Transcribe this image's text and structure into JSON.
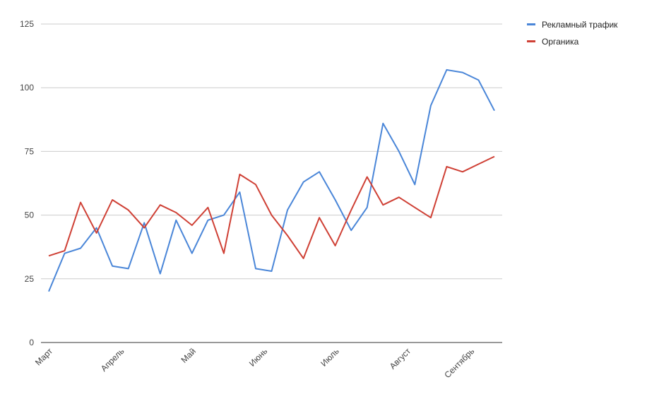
{
  "chart_data": {
    "type": "line",
    "ylim": [
      0,
      125
    ],
    "y_ticks": [
      0,
      25,
      50,
      75,
      100,
      125
    ],
    "grid": true,
    "legend_position": "top-right",
    "x_labels": [
      {
        "index": 0,
        "label": "Март"
      },
      {
        "index": 4.5,
        "label": "Апрель"
      },
      {
        "index": 9,
        "label": "Май"
      },
      {
        "index": 13.5,
        "label": "Июнь"
      },
      {
        "index": 18,
        "label": "Июль"
      },
      {
        "index": 22.5,
        "label": "Август"
      },
      {
        "index": 26.5,
        "label": "Сентябрь"
      }
    ],
    "series": [
      {
        "name": "Рекламный трафик",
        "color": "#4a86d8",
        "values": [
          20,
          35,
          37,
          45,
          30,
          29,
          47,
          27,
          48,
          35,
          48,
          50,
          59,
          29,
          28,
          52,
          63,
          67,
          56,
          44,
          53,
          86,
          75,
          62,
          93,
          107,
          106,
          103,
          91
        ]
      },
      {
        "name": "Органика",
        "color": "#cf4035",
        "values": [
          34,
          36,
          55,
          43,
          56,
          52,
          45,
          54,
          51,
          46,
          53,
          35,
          66,
          62,
          50,
          42,
          33,
          49,
          38,
          52,
          65,
          54,
          57,
          53,
          49,
          69,
          67,
          70,
          73
        ]
      }
    ]
  }
}
